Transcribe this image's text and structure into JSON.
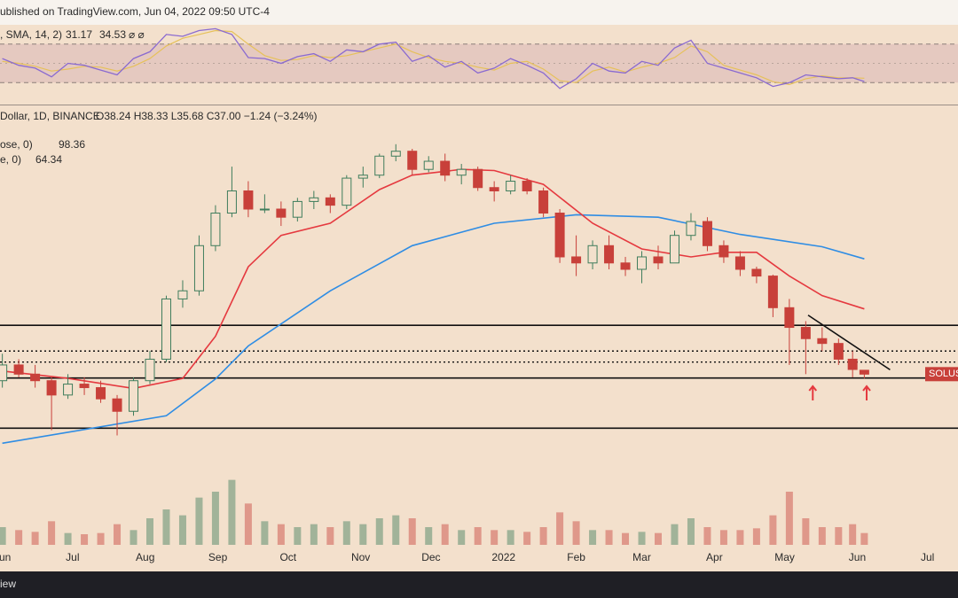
{
  "header": {
    "published": "ublished on TradingView.com, Jun 04, 2022 09:50 UTC-4"
  },
  "footer": {
    "text": "iew"
  },
  "chart_data": {
    "type": "candlestick",
    "legend": {
      "symbol": "Dollar, 1D, BINANCE",
      "ohlc": "O38.24 H38.33 L35.68 C37.00 −1.24 (−3.24%)",
      "ma_long": "ose, 0)",
      "ma_short": "e, 0)"
    },
    "price_tag": "SOLUS",
    "log_scale": true,
    "xlim": [
      -1,
      408
    ],
    "ylim": [
      8.7,
      364
    ],
    "xticks": [
      {
        "value": 0,
        "label": "Jun"
      },
      {
        "value": 30,
        "label": "Jul"
      },
      {
        "value": 61,
        "label": "Aug"
      },
      {
        "value": 92,
        "label": "Sep"
      },
      {
        "value": 122,
        "label": "Oct"
      },
      {
        "value": 153,
        "label": "Nov"
      },
      {
        "value": 183,
        "label": "Dec"
      },
      {
        "value": 214,
        "label": "2022"
      },
      {
        "value": 245,
        "label": "Feb"
      },
      {
        "value": 273,
        "label": "Mar"
      },
      {
        "value": 304,
        "label": "Apr"
      },
      {
        "value": 334,
        "label": "May"
      },
      {
        "value": 365,
        "label": "Jun"
      },
      {
        "value": 395,
        "label": "Jul"
      }
    ],
    "up_color": "#3f7d5c",
    "down_color": "#c8403a",
    "x": [
      0,
      7,
      14,
      21,
      28,
      35,
      42,
      49,
      56,
      63,
      70,
      77,
      84,
      91,
      98,
      105,
      112,
      119,
      126,
      133,
      140,
      147,
      154,
      161,
      168,
      175,
      182,
      189,
      196,
      203,
      210,
      217,
      224,
      231,
      238,
      245,
      252,
      259,
      266,
      273,
      280,
      287,
      294,
      301,
      308,
      315,
      322,
      329,
      336,
      343,
      350,
      357,
      363,
      368
    ],
    "open": [
      35,
      40,
      37,
      35,
      31,
      34,
      33,
      30,
      27,
      35,
      42,
      70,
      75,
      110,
      145,
      175,
      150,
      150,
      140,
      160,
      165,
      155,
      195,
      200,
      235,
      245,
      210,
      225,
      200,
      210,
      180,
      175,
      190,
      175,
      145,
      100,
      95,
      110,
      95,
      90,
      100,
      95,
      120,
      135,
      110,
      100,
      90,
      85,
      65,
      55,
      50,
      48,
      42,
      38.24
    ],
    "high": [
      44,
      42,
      40,
      36,
      37,
      36,
      35,
      31,
      36,
      45,
      72,
      82,
      120,
      155,
      215,
      190,
      170,
      160,
      165,
      175,
      170,
      200,
      215,
      240,
      260,
      250,
      235,
      240,
      220,
      215,
      190,
      200,
      195,
      180,
      150,
      120,
      115,
      120,
      100,
      105,
      110,
      125,
      145,
      140,
      115,
      105,
      92,
      86,
      70,
      58,
      55,
      50,
      45,
      38.33
    ],
    "low": [
      33,
      36,
      33,
      23,
      30,
      31,
      29,
      22,
      26,
      34,
      41,
      65,
      72,
      105,
      140,
      140,
      145,
      130,
      135,
      150,
      145,
      150,
      180,
      195,
      225,
      200,
      205,
      190,
      185,
      175,
      160,
      170,
      170,
      140,
      95,
      85,
      90,
      90,
      85,
      80,
      90,
      95,
      115,
      105,
      95,
      85,
      80,
      60,
      40,
      37,
      45,
      40,
      36,
      35.68
    ],
    "close": [
      40,
      37,
      35,
      31,
      34,
      33,
      30,
      27,
      35,
      42,
      70,
      75,
      110,
      145,
      175,
      150,
      150,
      140,
      160,
      165,
      155,
      195,
      200,
      235,
      245,
      210,
      225,
      200,
      210,
      180,
      175,
      190,
      175,
      145,
      100,
      95,
      110,
      95,
      90,
      100,
      95,
      120,
      135,
      110,
      100,
      90,
      85,
      65,
      55,
      50,
      48,
      42,
      38.5,
      37.0
    ],
    "volume": [
      30,
      25,
      22,
      40,
      20,
      18,
      20,
      35,
      25,
      45,
      60,
      50,
      80,
      90,
      110,
      70,
      40,
      35,
      30,
      35,
      30,
      40,
      35,
      45,
      50,
      45,
      30,
      35,
      25,
      30,
      25,
      25,
      22,
      30,
      55,
      40,
      25,
      25,
      20,
      22,
      20,
      35,
      45,
      30,
      25,
      25,
      28,
      50,
      90,
      45,
      30,
      30,
      35,
      20
    ],
    "volume_lim": [
      0,
      120
    ],
    "series": [
      {
        "color": "#2f8de4",
        "x": [
          0,
          70,
          91,
          105,
          140,
          175,
          210,
          245,
          280,
          315,
          350,
          368
        ],
        "values": [
          20.6,
          26,
          35.5,
          47,
          75,
          110,
          133,
          143,
          140,
          121,
          109,
          98.36
        ]
      },
      {
        "color": "#e5393f",
        "x": [
          0,
          28,
          56,
          77,
          91,
          105,
          119,
          140,
          161,
          175,
          196,
          210,
          231,
          252,
          273,
          294,
          308,
          322,
          336,
          350,
          368
        ],
        "values": [
          38,
          35.7,
          32.8,
          35.7,
          51,
          92,
          120,
          133,
          177,
          200,
          210,
          208,
          185,
          133,
          107,
          100,
          104,
          104,
          85,
          72,
          64.34
        ]
      }
    ],
    "hlines": [
      {
        "value": 56,
        "style": "solid"
      },
      {
        "value": 35.8,
        "style": "solid"
      },
      {
        "value": 23.4,
        "style": "solid"
      },
      {
        "value": 45,
        "style": "dotted"
      },
      {
        "value": 41,
        "style": "dotted"
      }
    ],
    "trendline": {
      "x": [
        344,
        379
      ],
      "values": [
        61,
        38.4
      ]
    },
    "arrows": {
      "x": [
        346,
        369
      ],
      "color": "#e5393f"
    },
    "rsi": {
      "label": ", SMA, 14, 2)",
      "icons": "⌀ ⌀",
      "color": "#8a6ad0",
      "sma_color": "#e6c15a",
      "ylim": [
        10,
        90
      ],
      "bands": [
        30,
        70
      ],
      "midline": 50,
      "values": [
        55,
        48,
        45,
        36,
        50,
        48,
        43,
        38,
        55,
        62,
        80,
        78,
        84,
        86,
        80,
        56,
        55,
        50,
        57,
        60,
        52,
        64,
        62,
        70,
        72,
        52,
        58,
        46,
        52,
        40,
        45,
        55,
        48,
        40,
        24,
        34,
        50,
        42,
        40,
        52,
        48,
        66,
        74,
        50,
        45,
        40,
        35,
        26,
        30,
        38,
        36,
        34,
        35,
        31.17
      ],
      "sma": [
        52,
        50,
        47,
        42,
        44,
        47,
        46,
        42,
        47,
        55,
        68,
        76,
        80,
        84,
        83,
        70,
        58,
        53,
        54,
        58,
        56,
        58,
        62,
        66,
        70,
        62,
        56,
        52,
        50,
        46,
        43,
        50,
        52,
        44,
        32,
        30,
        42,
        46,
        41,
        46,
        50,
        56,
        68,
        62,
        48,
        43,
        38,
        31,
        28,
        34,
        37,
        35,
        35,
        34.53
      ]
    }
  }
}
